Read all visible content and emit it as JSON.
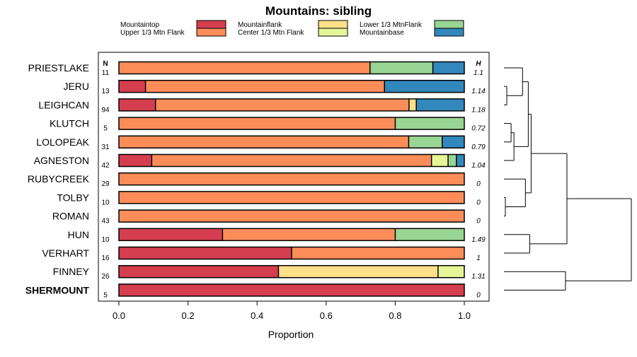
{
  "chart_data": {
    "type": "bar",
    "orientation": "horizontal",
    "stacked": true,
    "title": "Mountains: sibling",
    "xlabel": "Proportion",
    "xlim": [
      0,
      1
    ],
    "x_ticks": [
      "0.0",
      "0.2",
      "0.4",
      "0.6",
      "0.8",
      "1.0"
    ],
    "n_header": "N",
    "h_header": "H",
    "legend": [
      {
        "label": "Mountaintop",
        "color": "#d53e4f"
      },
      {
        "label": "Upper 1/3 Mtn Flank",
        "color": "#fc8d59"
      },
      {
        "label": "Mountainflank",
        "color": "#fee08b"
      },
      {
        "label": "Center 1/3 Mtn Flank",
        "color": "#e6f598"
      },
      {
        "label": "Lower 1/3 MtnFlank",
        "color": "#99d594"
      },
      {
        "label": "Mountainbase",
        "color": "#3288bd"
      }
    ],
    "rows": [
      {
        "label": "PRIESTLAKE",
        "n": "11",
        "h": "1.1",
        "bold": false,
        "values": [
          0,
          0.727,
          0,
          0,
          0.182,
          0.091
        ]
      },
      {
        "label": "JERU",
        "n": "13",
        "h": "1.14",
        "bold": false,
        "values": [
          0.077,
          0.692,
          0,
          0,
          0,
          0.231
        ]
      },
      {
        "label": "LEIGHCAN",
        "n": "94",
        "h": "1.18",
        "bold": false,
        "values": [
          0.106,
          0.734,
          0.021,
          0,
          0,
          0.139
        ]
      },
      {
        "label": "KLUTCH",
        "n": "5",
        "h": "0.72",
        "bold": false,
        "values": [
          0,
          0.8,
          0,
          0,
          0.2,
          0
        ]
      },
      {
        "label": "LOLOPEAK",
        "n": "31",
        "h": "0.79",
        "bold": false,
        "values": [
          0,
          0.839,
          0,
          0,
          0.097,
          0.064
        ]
      },
      {
        "label": "AGNESTON",
        "n": "42",
        "h": "1.04",
        "bold": false,
        "values": [
          0.095,
          0.81,
          0,
          0.048,
          0.024,
          0.023
        ]
      },
      {
        "label": "RUBYCREEK",
        "n": "29",
        "h": "0",
        "bold": false,
        "values": [
          0,
          1,
          0,
          0,
          0,
          0
        ]
      },
      {
        "label": "TOLBY",
        "n": "10",
        "h": "0",
        "bold": false,
        "values": [
          0,
          1,
          0,
          0,
          0,
          0
        ]
      },
      {
        "label": "ROMAN",
        "n": "43",
        "h": "0",
        "bold": false,
        "values": [
          0,
          1,
          0,
          0,
          0,
          0
        ]
      },
      {
        "label": "HUN",
        "n": "10",
        "h": "1.49",
        "bold": false,
        "values": [
          0.3,
          0.5,
          0,
          0,
          0.2,
          0
        ]
      },
      {
        "label": "VERHART",
        "n": "16",
        "h": "1",
        "bold": false,
        "values": [
          0.5,
          0.5,
          0,
          0,
          0,
          0
        ]
      },
      {
        "label": "FINNEY",
        "n": "26",
        "h": "1.31",
        "bold": false,
        "values": [
          0.462,
          0,
          0.462,
          0.076,
          0,
          0
        ]
      },
      {
        "label": "SHERMOUNT",
        "n": "5",
        "h": "0",
        "bold": true,
        "values": [
          1,
          0,
          0,
          0,
          0,
          0
        ]
      }
    ],
    "dendrogram": {
      "leaves": [
        "PRIESTLAKE",
        "JERU",
        "LEIGHCAN",
        "KLUTCH",
        "LOLOPEAK",
        "AGNESTON",
        "RUBYCREEK",
        "TOLBY",
        "ROMAN",
        "HUN",
        "VERHART",
        "FINNEY",
        "SHERMOUNT"
      ],
      "merges": [
        {
          "a": "L1",
          "b": "L2",
          "height": 0.02
        },
        {
          "a": "L0",
          "b": "C0",
          "height": 0.13
        },
        {
          "a": "L3",
          "b": "L4",
          "height": 0.05
        },
        {
          "a": "C2",
          "b": "L5",
          "height": 0.07
        },
        {
          "a": "C1",
          "b": "C3",
          "height": 0.17
        },
        {
          "a": "L7",
          "b": "L8",
          "height": 0.01
        },
        {
          "a": "L6",
          "b": "C5",
          "height": 0.15
        },
        {
          "a": "C4",
          "b": "C6",
          "height": 0.19
        },
        {
          "a": "L9",
          "b": "L10",
          "height": 0.18
        },
        {
          "a": "C7",
          "b": "C8",
          "height": 0.44
        },
        {
          "a": "L11",
          "b": "L12",
          "height": 0.43
        },
        {
          "a": "C9",
          "b": "C10",
          "height": 0.89
        }
      ]
    }
  }
}
